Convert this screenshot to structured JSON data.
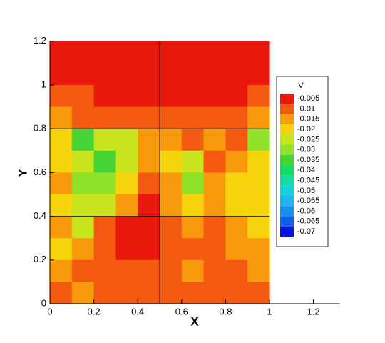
{
  "chart_data": {
    "type": "contour",
    "x_label": "X",
    "y_label": "Y",
    "xlim": [
      0,
      1.32
    ],
    "ylim": [
      0,
      1.2
    ],
    "xticks": [
      0,
      0.2,
      0.4,
      0.6,
      0.8,
      1,
      1.2
    ],
    "yticks": [
      0,
      0.2,
      0.4,
      0.6,
      0.8,
      1,
      1.2
    ],
    "reference_lines": {
      "x": [
        0.5
      ],
      "y": [
        0.4,
        0.8
      ]
    },
    "x": [
      0.05,
      0.15,
      0.25,
      0.35,
      0.45,
      0.55,
      0.65,
      0.75,
      0.85,
      0.95
    ],
    "y": [
      1.15,
      1.05,
      0.95,
      0.85,
      0.75,
      0.65,
      0.55,
      0.45,
      0.35,
      0.25,
      0.15,
      0.05
    ],
    "values": [
      [
        -0.003,
        -0.003,
        -0.003,
        -0.003,
        -0.003,
        -0.003,
        -0.003,
        -0.003,
        -0.003,
        -0.003
      ],
      [
        -0.004,
        -0.003,
        -0.003,
        -0.003,
        -0.003,
        -0.003,
        -0.003,
        -0.003,
        -0.003,
        -0.004
      ],
      [
        -0.008,
        -0.006,
        -0.004,
        -0.004,
        -0.004,
        -0.004,
        -0.004,
        -0.004,
        -0.004,
        -0.008
      ],
      [
        -0.012,
        -0.01,
        -0.009,
        -0.008,
        -0.008,
        -0.008,
        -0.008,
        -0.008,
        -0.008,
        -0.012
      ],
      [
        -0.018,
        -0.032,
        -0.025,
        -0.022,
        -0.013,
        -0.012,
        -0.009,
        -0.012,
        -0.01,
        -0.03
      ],
      [
        -0.02,
        -0.025,
        -0.033,
        -0.022,
        -0.013,
        -0.02,
        -0.025,
        -0.01,
        -0.013,
        -0.02
      ],
      [
        -0.015,
        -0.028,
        -0.03,
        -0.018,
        -0.008,
        -0.012,
        -0.028,
        -0.012,
        -0.02,
        -0.018
      ],
      [
        -0.02,
        -0.022,
        -0.025,
        -0.012,
        -0.004,
        -0.012,
        -0.02,
        -0.015,
        -0.018,
        -0.02
      ],
      [
        -0.014,
        -0.022,
        -0.008,
        -0.004,
        -0.004,
        -0.008,
        -0.012,
        -0.009,
        -0.015,
        -0.018
      ],
      [
        -0.016,
        -0.012,
        -0.008,
        -0.004,
        -0.004,
        -0.008,
        -0.007,
        -0.008,
        -0.012,
        -0.014
      ],
      [
        -0.012,
        -0.008,
        -0.009,
        -0.008,
        -0.006,
        -0.009,
        -0.012,
        -0.009,
        -0.01,
        -0.012
      ],
      [
        -0.009,
        -0.012,
        -0.008,
        -0.009,
        -0.007,
        -0.009,
        -0.009,
        -0.007,
        -0.008,
        -0.009
      ]
    ],
    "legend": {
      "title": "V",
      "levels": [
        -0.005,
        -0.01,
        -0.015,
        -0.02,
        -0.025,
        -0.03,
        -0.035,
        -0.04,
        -0.045,
        -0.05,
        -0.055,
        -0.06,
        -0.065,
        -0.07
      ],
      "colors": [
        "#e8180c",
        "#f35a10",
        "#f99a0c",
        "#f5d40c",
        "#c8e41c",
        "#8ee228",
        "#44d434",
        "#14dc64",
        "#14dca4",
        "#14d4d8",
        "#20b4f0",
        "#1490f0",
        "#1060e8",
        "#0a14e0"
      ]
    },
    "legend_position": "right"
  }
}
